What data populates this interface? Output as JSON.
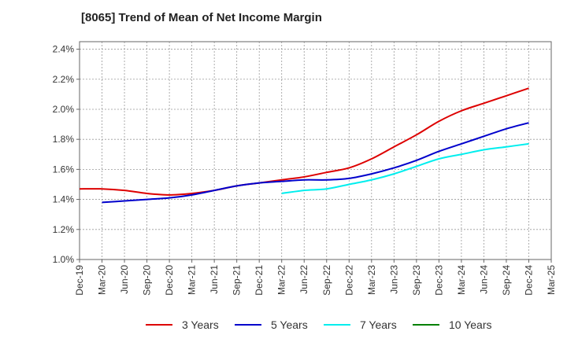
{
  "chart_data": {
    "type": "line",
    "title": "[8065]  Trend of Mean of Net Income Margin",
    "xlabel": "",
    "ylabel": "",
    "x_tick_labels": [
      "Dec-19",
      "Mar-20",
      "Jun-20",
      "Sep-20",
      "Dec-20",
      "Mar-21",
      "Jun-21",
      "Sep-21",
      "Dec-21",
      "Mar-22",
      "Jun-22",
      "Sep-22",
      "Dec-22",
      "Mar-23",
      "Jun-23",
      "Sep-23",
      "Dec-23",
      "Mar-24",
      "Jun-24",
      "Sep-24",
      "Dec-24",
      "Mar-25"
    ],
    "y_tick_labels": [
      "1.0%",
      "1.2%",
      "1.4%",
      "1.6%",
      "1.8%",
      "2.0%",
      "2.2%",
      "2.4%"
    ],
    "y_ticks": [
      1.0,
      1.2,
      1.4,
      1.6,
      1.8,
      2.0,
      2.2,
      2.4
    ],
    "ylim": [
      1.0,
      2.45
    ],
    "grid": true,
    "legend_position": "bottom",
    "series": [
      {
        "name": "3 Years",
        "color": "#dd0000",
        "values": [
          1.47,
          1.47,
          1.46,
          1.44,
          1.43,
          1.44,
          1.46,
          1.49,
          1.51,
          1.53,
          1.55,
          1.58,
          1.61,
          1.67,
          1.75,
          1.83,
          1.92,
          1.99,
          2.04,
          2.09,
          2.14,
          null
        ]
      },
      {
        "name": "5 Years",
        "color": "#0000cc",
        "values": [
          null,
          1.38,
          1.39,
          1.4,
          1.41,
          1.43,
          1.46,
          1.49,
          1.51,
          1.52,
          1.53,
          1.53,
          1.54,
          1.57,
          1.61,
          1.66,
          1.72,
          1.77,
          1.82,
          1.87,
          1.91,
          null
        ]
      },
      {
        "name": "7 Years",
        "color": "#00eeee",
        "values": [
          null,
          null,
          null,
          null,
          null,
          null,
          null,
          null,
          null,
          1.44,
          1.46,
          1.47,
          1.5,
          1.53,
          1.57,
          1.62,
          1.67,
          1.7,
          1.73,
          1.75,
          1.77,
          null
        ]
      },
      {
        "name": "10 Years",
        "color": "#008000",
        "values": [
          null,
          null,
          null,
          null,
          null,
          null,
          null,
          null,
          null,
          null,
          null,
          null,
          null,
          null,
          null,
          null,
          null,
          null,
          null,
          null,
          null,
          null
        ]
      }
    ]
  }
}
